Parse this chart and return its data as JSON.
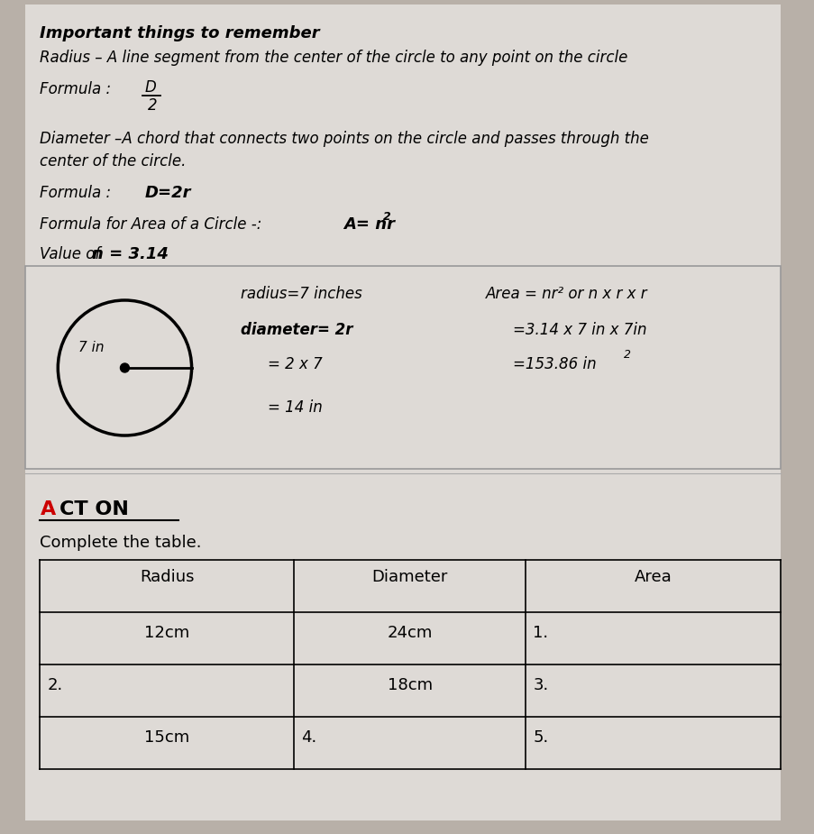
{
  "bg_color": "#b8b0a8",
  "paper_color": "#dedad6",
  "title": "Important things to remember",
  "line1": "Radius – A line segment from the center of the circle to any point on the circle",
  "line_diameter": "Diameter –A chord that connects two points on the circle and passes through the",
  "line_diameter2": "center of the circle.",
  "formula_diam_bold": "D=2r",
  "formula_area_plain": "Formula for Area of a Circle -:  ",
  "formula_area_bold": "A= nr",
  "formula_area_sup": "2",
  "value_pi_plain": "Value of ",
  "value_pi_bold": "n = 3.14",
  "radius_example": "radius=7 inches",
  "area_label": "Area = nr² or n x r x r",
  "diam_example": "diameter= 2r",
  "area_step1": "=3.14 x 7 in x 7in",
  "diam_step1": "= 2 x 7",
  "area_step2": "=153.86 in",
  "area_step2_sup": "2",
  "diam_step2": "= 14 in",
  "act_on_A_color": "#cc0000",
  "complete": "Complete the table.",
  "table_headers": [
    "Radius",
    "Diameter",
    "Area"
  ],
  "table_row1": [
    "12cm",
    "24cm",
    "1."
  ],
  "table_row2": [
    "2.",
    "18cm",
    "3."
  ],
  "table_row3": [
    "15cm",
    "4.",
    "5."
  ]
}
